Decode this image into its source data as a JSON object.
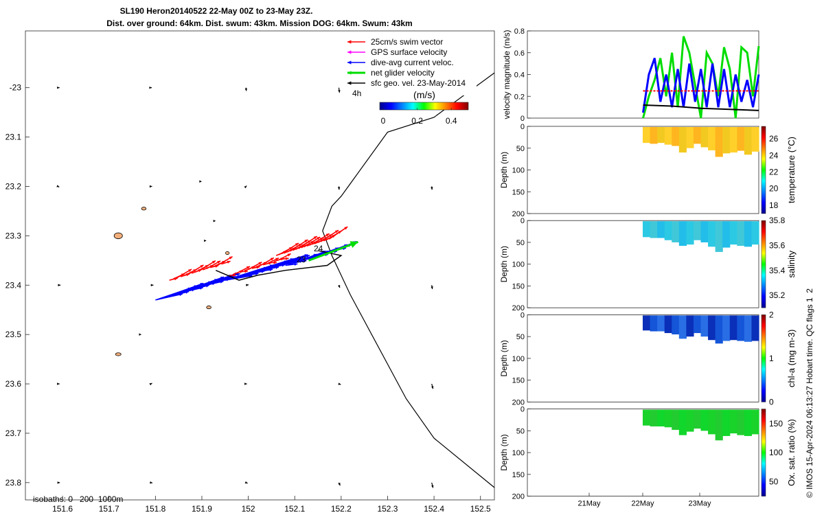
{
  "title": {
    "line1": "SL190 Heron20140522 22-May 00Z to 23-May 23Z.",
    "line2": "Dist. over ground: 64km. Dist. swum: 43km. Mission DOG: 64km. Swum: 43km"
  },
  "credit": "© IMOS 15-Apr-2024 06:13:27 Hobart time. QC flags 1  2",
  "colors": {
    "swim_vector": "#ff0000",
    "gps_velocity": "#ff00ff",
    "current": "#0000ff",
    "net_velocity": "#00dd00",
    "sfc_geo": "#000000",
    "island_fill": "#f4b07c"
  },
  "legend": {
    "items": [
      {
        "label": "25cm/s swim vector",
        "color": "#ff0000"
      },
      {
        "label": "GPS surface velocity",
        "color": "#ff00ff"
      },
      {
        "label": "dive-avg current veloc.",
        "color": "#0000ff"
      },
      {
        "label": "net glider velocity",
        "color": "#00dd00"
      },
      {
        "label": "sfc geo. vel. 23-May-2014",
        "color": "#000000"
      }
    ],
    "interval": "4h",
    "colorbar_title": "(m/s)",
    "colorbar_ticks": [
      "0",
      "0.2",
      "0.4"
    ],
    "colorbar_range": [
      -0.02,
      0.5
    ]
  },
  "map": {
    "xticks": [
      "151.6",
      "151.7",
      "151.8",
      "151.9",
      "152",
      "152.1",
      "152.2",
      "152.3",
      "152.4",
      "152.5"
    ],
    "yticks": [
      "-23",
      "23.1",
      "23.2",
      "23.3",
      "23.4",
      "23.5",
      "23.6",
      "23.7",
      "23.8"
    ],
    "xlim": [
      151.52,
      152.53
    ],
    "ylim": [
      -23.835,
      -22.885
    ],
    "isobaths_label": "isobaths: 0   200  1000m",
    "day_labels": [
      "23",
      "24"
    ],
    "contour_path": [
      [
        152.53,
        -22.97
      ],
      [
        152.4,
        -23.06
      ],
      [
        152.3,
        -23.09
      ],
      [
        152.2,
        -23.22
      ],
      [
        152.18,
        -23.24
      ],
      [
        152.16,
        -23.29
      ],
      [
        152.18,
        -23.34
      ],
      [
        152.22,
        -23.42
      ],
      [
        152.34,
        -23.63
      ],
      [
        152.4,
        -23.71
      ],
      [
        152.53,
        -23.81
      ]
    ],
    "glider_track": [
      [
        151.93,
        -23.37
      ],
      [
        151.98,
        -23.39
      ],
      [
        152.02,
        -23.38
      ],
      [
        152.08,
        -23.37
      ],
      [
        152.17,
        -23.36
      ],
      [
        152.2,
        -23.34
      ],
      [
        152.15,
        -23.33
      ]
    ],
    "geo_arrows": [
      {
        "lon": 151.59,
        "lat": -23.0,
        "u": 0.05,
        "v": 0.0
      },
      {
        "lon": 151.79,
        "lat": -23.0,
        "u": 0.03,
        "v": 0.0
      },
      {
        "lon": 151.995,
        "lat": -23.0,
        "u": 0.01,
        "v": -0.1
      },
      {
        "lon": 152.195,
        "lat": -23.0,
        "u": 0.02,
        "v": -0.15
      },
      {
        "lon": 151.59,
        "lat": -23.2,
        "u": 0.04,
        "v": -0.02
      },
      {
        "lon": 151.79,
        "lat": -23.2,
        "u": 0.04,
        "v": 0.0
      },
      {
        "lon": 151.9,
        "lat": -23.19,
        "u": 0.0,
        "v": 0.0
      },
      {
        "lon": 151.995,
        "lat": -23.2,
        "u": 0.02,
        "v": 0.02
      },
      {
        "lon": 152.195,
        "lat": -23.2,
        "u": 0.01,
        "v": -0.1
      },
      {
        "lon": 152.395,
        "lat": -23.2,
        "u": 0.01,
        "v": -0.1
      },
      {
        "lon": 151.93,
        "lat": -23.27,
        "u": 0.0,
        "v": 0.0
      },
      {
        "lon": 151.91,
        "lat": -23.31,
        "u": 0.0,
        "v": 0.0
      },
      {
        "lon": 151.59,
        "lat": -23.4,
        "u": 0.08,
        "v": 0.0
      },
      {
        "lon": 151.79,
        "lat": -23.4,
        "u": 0.08,
        "v": 0.0
      },
      {
        "lon": 151.995,
        "lat": -23.4,
        "u": 0.08,
        "v": 0.01
      },
      {
        "lon": 152.195,
        "lat": -23.4,
        "u": 0.03,
        "v": -0.08
      },
      {
        "lon": 152.395,
        "lat": -23.4,
        "u": 0.02,
        "v": -0.12
      },
      {
        "lon": 151.77,
        "lat": -23.5,
        "u": 0.0,
        "v": 0.0
      },
      {
        "lon": 151.59,
        "lat": -23.6,
        "u": 0.05,
        "v": 0.0
      },
      {
        "lon": 151.79,
        "lat": -23.6,
        "u": 0.04,
        "v": 0.02
      },
      {
        "lon": 151.995,
        "lat": -23.6,
        "u": 0.03,
        "v": 0.0
      },
      {
        "lon": 152.195,
        "lat": -23.6,
        "u": 0.06,
        "v": -0.02
      },
      {
        "lon": 152.395,
        "lat": -23.6,
        "u": 0.04,
        "v": -0.15
      },
      {
        "lon": 151.59,
        "lat": -23.8,
        "u": 0.06,
        "v": 0.0
      },
      {
        "lon": 151.79,
        "lat": -23.8,
        "u": 0.05,
        "v": -0.01
      },
      {
        "lon": 151.995,
        "lat": -23.8,
        "u": 0.05,
        "v": -0.02
      },
      {
        "lon": 152.195,
        "lat": -23.8,
        "u": 0.04,
        "v": -0.09
      },
      {
        "lon": 152.395,
        "lat": -23.8,
        "u": 0.04,
        "v": -0.16
      }
    ],
    "islands": [
      {
        "lon": 151.72,
        "lat": -23.3,
        "rx": 0.009,
        "ry": 0.006
      },
      {
        "lon": 151.775,
        "lat": -23.245,
        "rx": 0.005,
        "ry": 0.003
      },
      {
        "lon": 151.72,
        "lat": -23.54,
        "rx": 0.006,
        "ry": 0.003
      },
      {
        "lon": 151.915,
        "lat": -23.445,
        "rx": 0.005,
        "ry": 0.003
      },
      {
        "lon": 151.955,
        "lat": -23.335,
        "rx": 0.004,
        "ry": 0.003
      }
    ],
    "blue_vectors": [
      {
        "lon": 151.8,
        "lat": -23.43,
        "u": 0.2,
        "v": 0.06,
        "n": 30
      },
      {
        "lon": 151.95,
        "lat": -23.39,
        "u": 0.2,
        "v": 0.05,
        "n": 30
      },
      {
        "lon": 152.08,
        "lat": -23.36,
        "u": 0.1,
        "v": 0.03,
        "n": 20
      }
    ],
    "red_vectors": [
      {
        "lon": 151.83,
        "lat": -23.39,
        "u": 0.06,
        "v": 0.03,
        "n": 15
      },
      {
        "lon": 151.96,
        "lat": -23.38,
        "u": 0.05,
        "v": 0.02,
        "n": 15
      },
      {
        "lon": 152.06,
        "lat": -23.34,
        "u": 0.07,
        "v": 0.04,
        "n": 20
      }
    ],
    "net_arrow": {
      "lon": 152.13,
      "lat": -23.35,
      "u": 0.08,
      "v": 0.03
    }
  },
  "chart_data": [
    {
      "type": "line",
      "ylabel": "velocity magnitude (m/s)",
      "ylim": [
        0,
        0.8
      ],
      "yticks": [
        "0",
        "0.2",
        "0.4",
        "0.6",
        "0.8"
      ],
      "xlim": [
        0,
        4
      ],
      "series": [
        {
          "color": "#00dd00",
          "x": [
            2.0,
            2.1,
            2.2,
            2.3,
            2.4,
            2.5,
            2.6,
            2.7,
            2.8,
            2.9,
            3.0,
            3.1,
            3.2,
            3.3,
            3.4,
            3.5,
            3.6,
            3.7,
            3.8,
            3.9,
            4.0
          ],
          "values": [
            0.0,
            0.2,
            0.35,
            0.55,
            0.2,
            0.6,
            0.1,
            0.75,
            0.6,
            0.3,
            0.0,
            0.6,
            0.5,
            0.2,
            0.65,
            0.45,
            0.0,
            0.65,
            0.6,
            0.2,
            0.66
          ]
        },
        {
          "color": "#0000ff",
          "x": [
            2.0,
            2.1,
            2.2,
            2.3,
            2.4,
            2.5,
            2.6,
            2.7,
            2.8,
            2.9,
            3.0,
            3.1,
            3.2,
            3.3,
            3.4,
            3.5,
            3.6,
            3.7,
            3.8,
            3.9,
            4.0
          ],
          "values": [
            0.05,
            0.4,
            0.55,
            0.15,
            0.4,
            0.1,
            0.45,
            0.1,
            0.5,
            0.15,
            0.45,
            0.1,
            0.5,
            0.1,
            0.45,
            0.1,
            0.4,
            0.15,
            0.35,
            0.1,
            0.4
          ]
        },
        {
          "color": "#ff0000",
          "x": [
            2.0,
            4.0
          ],
          "values": [
            0.25,
            0.25
          ]
        },
        {
          "color": "#000000",
          "x": [
            2.0,
            2.5,
            3.0,
            3.5,
            4.0
          ],
          "values": [
            0.12,
            0.11,
            0.09,
            0.08,
            0.07
          ]
        }
      ]
    },
    {
      "type": "heatmap",
      "ylabel": "Depth (m)",
      "cbar_label": "temperature (°C)",
      "cbar_ticks": [
        "18",
        "20",
        "22",
        "24",
        "26"
      ],
      "cbar_range": [
        17,
        27.5
      ],
      "ylim": [
        200,
        0
      ],
      "yticks": [
        "0",
        "50",
        "100",
        "150",
        "200"
      ],
      "value_range": [
        24.5,
        25.5
      ],
      "color_stops": [
        "#ffd02a",
        "#ffb51f",
        "#f2c920"
      ],
      "max_depth": [
        38,
        40,
        38,
        42,
        45,
        60,
        50,
        40,
        48,
        55,
        70,
        62,
        60,
        56,
        65,
        58
      ]
    },
    {
      "type": "heatmap",
      "ylabel": "Depth (m)",
      "cbar_label": "salinity",
      "cbar_ticks": [
        "35.2",
        "35.4",
        "35.6",
        "35.8"
      ],
      "cbar_range": [
        35.1,
        35.8
      ],
      "ylim": [
        200,
        0
      ],
      "yticks": [
        "0",
        "50",
        "100",
        "150",
        "200"
      ],
      "value_range": [
        35.38,
        35.45
      ],
      "color_stops": [
        "#2bc9e3",
        "#40c8d9",
        "#22bde8"
      ],
      "max_depth": [
        38,
        40,
        40,
        45,
        50,
        58,
        55,
        45,
        50,
        60,
        72,
        62,
        55,
        58,
        60,
        55
      ]
    },
    {
      "type": "heatmap",
      "ylabel": "Depth (m)",
      "cbar_label": "chl-a (mg m-3)",
      "cbar_ticks": [
        "0",
        "1",
        "2"
      ],
      "cbar_range": [
        0,
        2
      ],
      "ylim": [
        200,
        0
      ],
      "yticks": [
        "0",
        "50",
        "100",
        "150",
        "200"
      ],
      "value_range": [
        0.2,
        0.45
      ],
      "color_stops": [
        "#0a2fb8",
        "#1555d8",
        "#2a6ee6"
      ],
      "max_depth": [
        36,
        38,
        38,
        42,
        45,
        55,
        50,
        42,
        50,
        58,
        66,
        60,
        58,
        60,
        62,
        60
      ]
    },
    {
      "type": "heatmap",
      "ylabel": "Depth (m)",
      "cbar_label": "Ox. sat. ratio (%)",
      "cbar_ticks": [
        "50",
        "100",
        "150"
      ],
      "cbar_range": [
        25,
        175
      ],
      "ylim": [
        200,
        0
      ],
      "yticks": [
        "0",
        "50",
        "100",
        "150",
        "200"
      ],
      "xticks": [
        "21May",
        "22May",
        "23May"
      ],
      "value_range": [
        100,
        105
      ],
      "color_stops": [
        "#19d22a",
        "#22cc30",
        "#11d62b"
      ],
      "max_depth": [
        38,
        40,
        40,
        42,
        48,
        60,
        52,
        45,
        50,
        58,
        72,
        62,
        56,
        60,
        62,
        58
      ]
    }
  ]
}
